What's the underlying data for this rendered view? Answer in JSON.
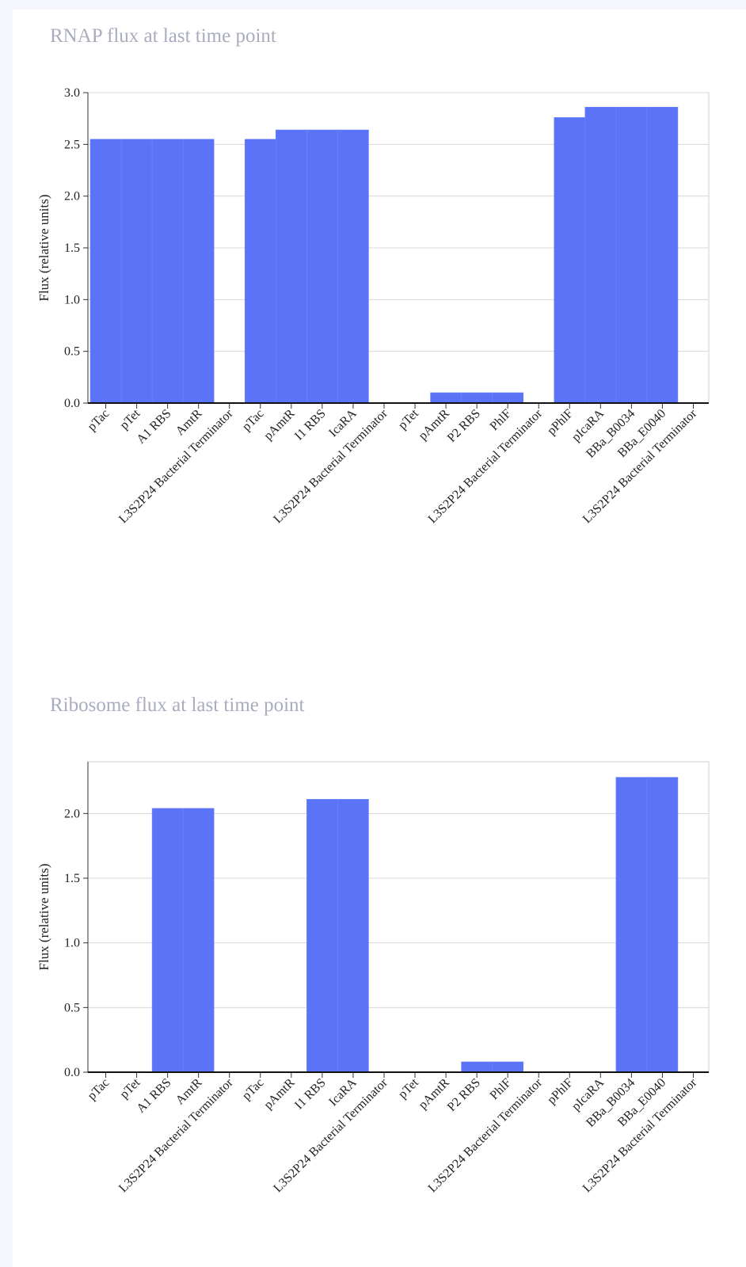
{
  "chart_data": [
    {
      "type": "bar",
      "title": "RNAP flux at last time point",
      "xlabel": "",
      "ylabel": "Flux (relative units)",
      "ylim": [
        0,
        3.0
      ],
      "yticks": [
        "0.0",
        "0.5",
        "1.0",
        "1.5",
        "2.0",
        "2.5",
        "3.0"
      ],
      "grid": true,
      "categories": [
        "pTac",
        "pTet",
        "A1 RBS",
        "AmtR",
        "L3S2P24 Bacterial Terminator",
        "pTac",
        "pAmtR",
        "I1 RBS",
        "IcaRA",
        "L3S2P24 Bacterial Terminator",
        "pTet",
        "pAmtR",
        "P2 RBS",
        "PhlF",
        "L3S2P24 Bacterial Terminator",
        "pPhlF",
        "pIcaRA",
        "BBa_B0034",
        "BBa_E0040",
        "L3S2P24 Bacterial Terminator"
      ],
      "values": [
        2.55,
        2.55,
        2.55,
        2.55,
        0,
        2.55,
        2.64,
        2.64,
        2.64,
        0,
        0,
        0.1,
        0.1,
        0.1,
        0,
        2.76,
        2.86,
        2.86,
        2.86,
        0
      ],
      "bar_color": "#5b74f7"
    },
    {
      "type": "bar",
      "title": "Ribosome flux at last time point",
      "xlabel": "",
      "ylabel": "Flux (relative units)",
      "ylim": [
        0,
        2.4
      ],
      "yticks": [
        "0.0",
        "0.5",
        "1.0",
        "1.5",
        "2.0"
      ],
      "grid": true,
      "categories": [
        "pTac",
        "pTet",
        "A1 RBS",
        "AmtR",
        "L3S2P24 Bacterial Terminator",
        "pTac",
        "pAmtR",
        "I1 RBS",
        "IcaRA",
        "L3S2P24 Bacterial Terminator",
        "pTet",
        "pAmtR",
        "P2 RBS",
        "PhlF",
        "L3S2P24 Bacterial Terminator",
        "pPhlF",
        "pIcaRA",
        "BBa_B0034",
        "BBa_E0040",
        "L3S2P24 Bacterial Terminator"
      ],
      "values": [
        0,
        0,
        2.04,
        2.04,
        0,
        0,
        0,
        2.11,
        2.11,
        0,
        0,
        0,
        0.08,
        0.08,
        0,
        0,
        0,
        2.28,
        2.28,
        0
      ],
      "bar_color": "#5b74f7"
    }
  ]
}
